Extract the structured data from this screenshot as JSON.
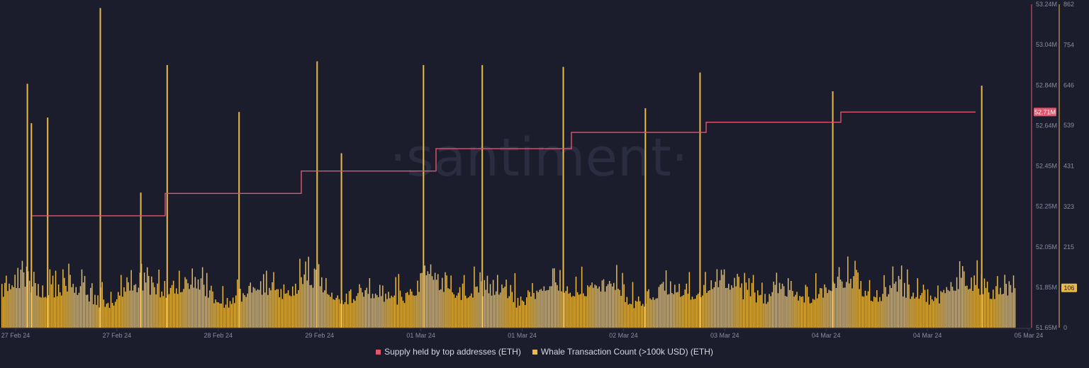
{
  "watermark": "·santiment·",
  "colors": {
    "background": "#1b1c2c",
    "supply_line": "#e0566d",
    "whale_bars": "#e9b949",
    "axis_text": "#8a8ea3"
  },
  "chart_data": {
    "type": "bar",
    "x_tick_labels": [
      "27 Feb 24",
      "27 Feb 24",
      "28 Feb 24",
      "29 Feb 24",
      "01 Mar 24",
      "01 Mar 24",
      "02 Mar 24",
      "03 Mar 24",
      "04 Mar 24",
      "04 Mar 24",
      "05 Mar 24"
    ],
    "x_range": [
      "27 Feb 24",
      "05 Mar 24"
    ],
    "series": [
      {
        "name": "Supply held by top addresses (ETH)",
        "type": "line-step",
        "axis": "left-y2",
        "ylim": [
          51.65,
          53.24
        ],
        "unit": "M",
        "points": [
          {
            "t": "27 Feb 24",
            "v": 52.2
          },
          {
            "t": "28 Feb 24",
            "v": 52.31
          },
          {
            "t": "29 Feb 24",
            "v": 52.42
          },
          {
            "t": "01 Mar 24",
            "v": 52.53
          },
          {
            "t": "02 Mar 24",
            "v": 52.61
          },
          {
            "t": "03 Mar 24",
            "v": 52.66
          },
          {
            "t": "04 Mar 24",
            "v": 52.71
          },
          {
            "t": "05 Mar 24",
            "v": 52.71
          }
        ],
        "last_value_label": "52.71M"
      },
      {
        "name": "Whale Transaction Count (>100k USD) (ETH)",
        "type": "bar",
        "axis": "right-y",
        "ylim": [
          0,
          862
        ],
        "baseline_range": [
          50,
          210
        ],
        "spikes": [
          {
            "t": "27 Feb 24",
            "v": 650
          },
          {
            "t": "27 Feb 24",
            "v": 545
          },
          {
            "t": "27 Feb 24",
            "v": 560
          },
          {
            "t": "27 Feb 24",
            "v": 852
          },
          {
            "t": "27 Feb 24",
            "v": 360
          },
          {
            "t": "28 Feb 24",
            "v": 700
          },
          {
            "t": "28 Feb 24",
            "v": 575
          },
          {
            "t": "29 Feb 24",
            "v": 710
          },
          {
            "t": "29 Feb 24",
            "v": 465
          },
          {
            "t": "01 Mar 24",
            "v": 700
          },
          {
            "t": "01 Mar 24",
            "v": 700
          },
          {
            "t": "02 Mar 24",
            "v": 695
          },
          {
            "t": "02 Mar 24",
            "v": 585
          },
          {
            "t": "03 Mar 24",
            "v": 680
          },
          {
            "t": "04 Mar 24",
            "v": 630
          },
          {
            "t": "04 Mar 24",
            "v": 645
          }
        ],
        "last_value_label": "106"
      }
    ],
    "left_y_ticks": [
      "53.24M",
      "53.04M",
      "52.84M",
      "52.64M",
      "52.45M",
      "52.25M",
      "52.05M",
      "51.85M",
      "51.65M"
    ],
    "right_y_ticks": [
      "862",
      "754",
      "646",
      "539",
      "431",
      "323",
      "215",
      "0"
    ],
    "grid": false,
    "legend_position": "bottom-center"
  },
  "legend": {
    "supply": "Supply held by top addresses (ETH)",
    "whale": "Whale Transaction Count (>100k USD) (ETH)"
  }
}
